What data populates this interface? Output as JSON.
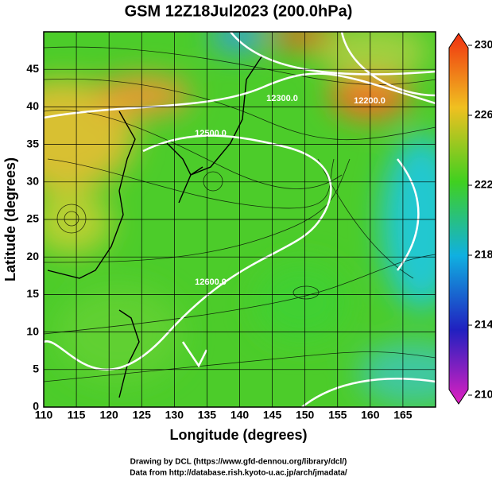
{
  "title": "GSM 12Z18Jul2023 (200.0hPa)",
  "map": {
    "xlabel": "Longitude (degrees)",
    "ylabel": "Latitude  (degrees)",
    "xlim": [
      110,
      170
    ],
    "ylim": [
      0,
      50
    ],
    "xticks": [
      110,
      115,
      120,
      125,
      130,
      135,
      140,
      145,
      150,
      155,
      160,
      165
    ],
    "yticks": [
      0,
      5,
      10,
      15,
      20,
      25,
      30,
      35,
      40,
      45
    ],
    "contour_labels": [
      "12200.0",
      "12300.0",
      "12500.0",
      "12600.0"
    ]
  },
  "colorbar": {
    "lim": [
      210,
      230
    ],
    "ticks": [
      210,
      214,
      218,
      222,
      226,
      230
    ]
  },
  "credits": [
    "Drawing by DCL (https://www.gfd-dennou.org/library/dcl/)",
    "Data from http://database.rish.kyoto-u.ac.jp/arch/jmadata/"
  ]
}
